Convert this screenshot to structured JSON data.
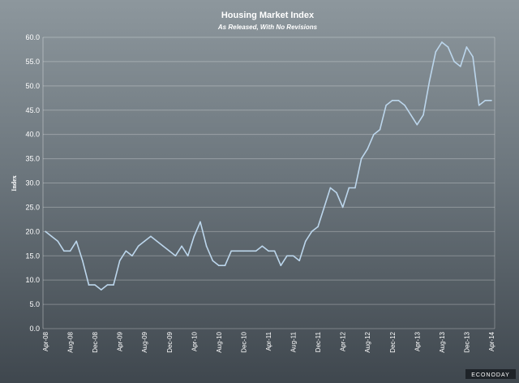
{
  "chart_data": {
    "type": "line",
    "title": "Housing Market Index",
    "subtitle": "As Released, With No Revisions",
    "xlabel": "",
    "ylabel": "Index",
    "ylim": [
      0,
      60
    ],
    "yticks": [
      "0.0",
      "5.0",
      "10.0",
      "15.0",
      "20.0",
      "25.0",
      "30.0",
      "35.0",
      "40.0",
      "45.0",
      "50.0",
      "55.0",
      "60.0"
    ],
    "xticks": [
      "Apr-08",
      "Aug-08",
      "Dec-08",
      "Apr-09",
      "Aug-09",
      "Dec-09",
      "Apr-10",
      "Aug-10",
      "Dec-10",
      "Apr-11",
      "Aug-11",
      "Dec-11",
      "Apr-12",
      "Aug-12",
      "Dec-12",
      "Apr-13",
      "Aug-13",
      "Dec-13",
      "Apr-14"
    ],
    "x_start": "Apr-08",
    "x_end": "Apr-14",
    "grid": true,
    "series": [
      {
        "color": "#bcd6ec",
        "values": [
          20,
          19,
          18,
          16,
          16,
          18,
          14,
          9,
          9,
          8,
          9,
          9,
          14,
          16,
          15,
          17,
          18,
          19,
          18,
          17,
          16,
          15,
          17,
          15,
          19,
          22,
          17,
          14,
          13,
          13,
          16,
          16,
          16,
          16,
          16,
          17,
          16,
          16,
          13,
          15,
          15,
          14,
          18,
          20,
          21,
          25,
          29,
          28,
          25,
          29,
          29,
          35,
          37,
          40,
          41,
          46,
          47,
          47,
          46,
          44,
          42,
          44,
          51,
          57,
          59,
          58,
          55,
          54,
          58,
          56,
          46,
          47,
          47
        ]
      }
    ]
  },
  "branding": {
    "logo_text": "ECONODAY"
  }
}
